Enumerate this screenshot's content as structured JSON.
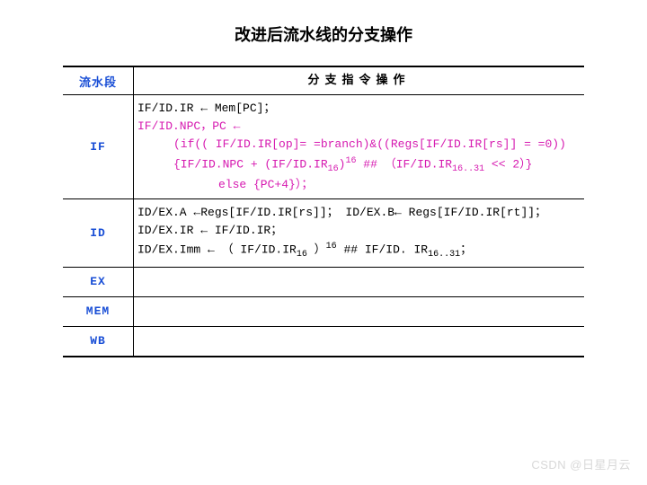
{
  "title": "改进后流水线的分支操作",
  "headers": {
    "stage": "流水段",
    "ops": "分支指令操作"
  },
  "rows": {
    "if": {
      "stage": "IF",
      "l1": "IF/ID.IR ← Mem[PC]；",
      "l2": "IF/ID.NPC，PC ←",
      "l3": "(if(( IF/ID.IR[op]= =branch)&((Regs[IF/ID.IR[rs]] = =0))",
      "l4a": "{IF/ID.NPC + (IF/ID.IR",
      "l4_sub1": "16",
      "l4b": ")",
      "l4_sup": "16",
      "l4c": " ## （IF/ID.IR",
      "l4_sub2": "16..31",
      "l4d": " << 2）}",
      "l5": "else {PC+4}）；"
    },
    "id": {
      "stage": "ID",
      "l1": "ID/EX.A ←Regs[IF/ID.IR[rs]]； ID/EX.B← Regs[IF/ID.IR[rt]]；",
      "l2": "ID/EX.IR ← IF/ID.IR；",
      "l3a": "ID/EX.Imm ← （ IF/ID.IR",
      "l3_sub1": "16",
      "l3b": " ）",
      "l3_sup": "16",
      "l3c": " ## IF/ID. IR",
      "l3_sub2": "16..31",
      "l3d": "；"
    },
    "ex": {
      "stage": "EX"
    },
    "mem": {
      "stage": "MEM"
    },
    "wb": {
      "stage": "WB"
    }
  },
  "watermark": "CSDN @日星月云"
}
